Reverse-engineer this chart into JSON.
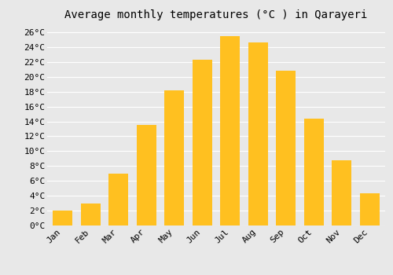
{
  "title": "Average monthly temperatures (°C ) in Qarayeri",
  "months": [
    "Jan",
    "Feb",
    "Mar",
    "Apr",
    "May",
    "Jun",
    "Jul",
    "Aug",
    "Sep",
    "Oct",
    "Nov",
    "Dec"
  ],
  "values": [
    2,
    3,
    7,
    13.5,
    18.2,
    22.3,
    25.5,
    24.6,
    20.8,
    14.4,
    8.8,
    4.3
  ],
  "bar_color": "#FFC020",
  "ylim": [
    0,
    27
  ],
  "yticks": [
    0,
    2,
    4,
    6,
    8,
    10,
    12,
    14,
    16,
    18,
    20,
    22,
    24,
    26
  ],
  "background_color": "#e8e8e8",
  "plot_bg_color": "#e8e8e8",
  "grid_color": "#ffffff",
  "title_fontsize": 10,
  "tick_fontsize": 8,
  "font_family": "monospace"
}
